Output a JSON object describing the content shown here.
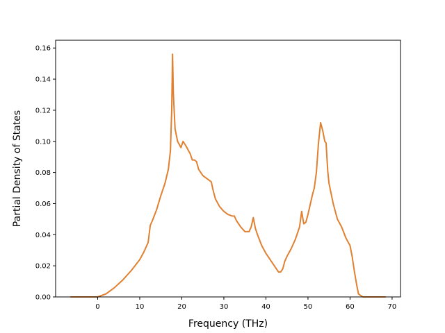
{
  "chart_data": {
    "type": "line",
    "title": "",
    "xlabel": "Frequency (THz)",
    "ylabel": "Partial Density of States",
    "xlim": [
      -10,
      72
    ],
    "ylim": [
      0,
      0.165
    ],
    "grid": false,
    "legend": "none",
    "xticks": [
      0,
      10,
      20,
      30,
      40,
      50,
      60,
      70
    ],
    "xtick_labels": [
      "0",
      "10",
      "20",
      "30",
      "40",
      "50",
      "60",
      "70"
    ],
    "yticks": [
      0.0,
      0.02,
      0.04,
      0.06,
      0.08,
      0.1,
      0.12,
      0.14,
      0.16
    ],
    "ytick_labels": [
      "0.00",
      "0.02",
      "0.04",
      "0.06",
      "0.08",
      "0.10",
      "0.12",
      "0.14",
      "0.16"
    ],
    "series": [
      {
        "color": "#e08030",
        "x": [
          -6.5,
          -4,
          -2,
          0,
          2,
          4,
          6,
          8,
          10,
          11,
          12,
          12.5,
          13,
          14,
          15,
          16,
          16.8,
          17.3,
          17.6,
          17.8,
          18.0,
          18.4,
          19,
          19.8,
          20.3,
          21,
          22,
          22.5,
          23,
          23.5,
          24,
          25,
          26,
          27,
          27.5,
          28,
          29,
          30,
          31,
          32,
          32.5,
          33,
          34,
          35,
          36,
          36.5,
          37,
          37.5,
          38,
          39,
          40,
          41,
          42,
          43,
          43.5,
          44,
          44.5,
          45,
          46,
          47,
          48,
          48.5,
          49,
          49.5,
          50,
          51,
          51.5,
          52,
          52.5,
          53,
          53.5,
          54,
          54.3,
          54.7,
          55,
          56,
          57,
          58,
          59,
          60,
          60.5,
          61,
          61.5,
          62,
          62.5,
          63,
          64,
          66,
          68.5
        ],
        "y": [
          0.0,
          0.0,
          0.0,
          0.0,
          0.002,
          0.006,
          0.011,
          0.017,
          0.024,
          0.029,
          0.035,
          0.046,
          0.049,
          0.056,
          0.065,
          0.073,
          0.082,
          0.094,
          0.12,
          0.156,
          0.13,
          0.108,
          0.1,
          0.096,
          0.1,
          0.097,
          0.092,
          0.088,
          0.088,
          0.087,
          0.082,
          0.078,
          0.076,
          0.074,
          0.068,
          0.063,
          0.058,
          0.055,
          0.053,
          0.052,
          0.052,
          0.049,
          0.045,
          0.042,
          0.042,
          0.045,
          0.051,
          0.044,
          0.04,
          0.033,
          0.028,
          0.024,
          0.02,
          0.016,
          0.016,
          0.018,
          0.023,
          0.026,
          0.031,
          0.037,
          0.045,
          0.055,
          0.047,
          0.048,
          0.053,
          0.065,
          0.07,
          0.08,
          0.099,
          0.112,
          0.107,
          0.1,
          0.099,
          0.081,
          0.073,
          0.06,
          0.05,
          0.045,
          0.038,
          0.033,
          0.026,
          0.017,
          0.009,
          0.002,
          0.001,
          0.0,
          0.0,
          0.0,
          0.0
        ]
      }
    ]
  }
}
